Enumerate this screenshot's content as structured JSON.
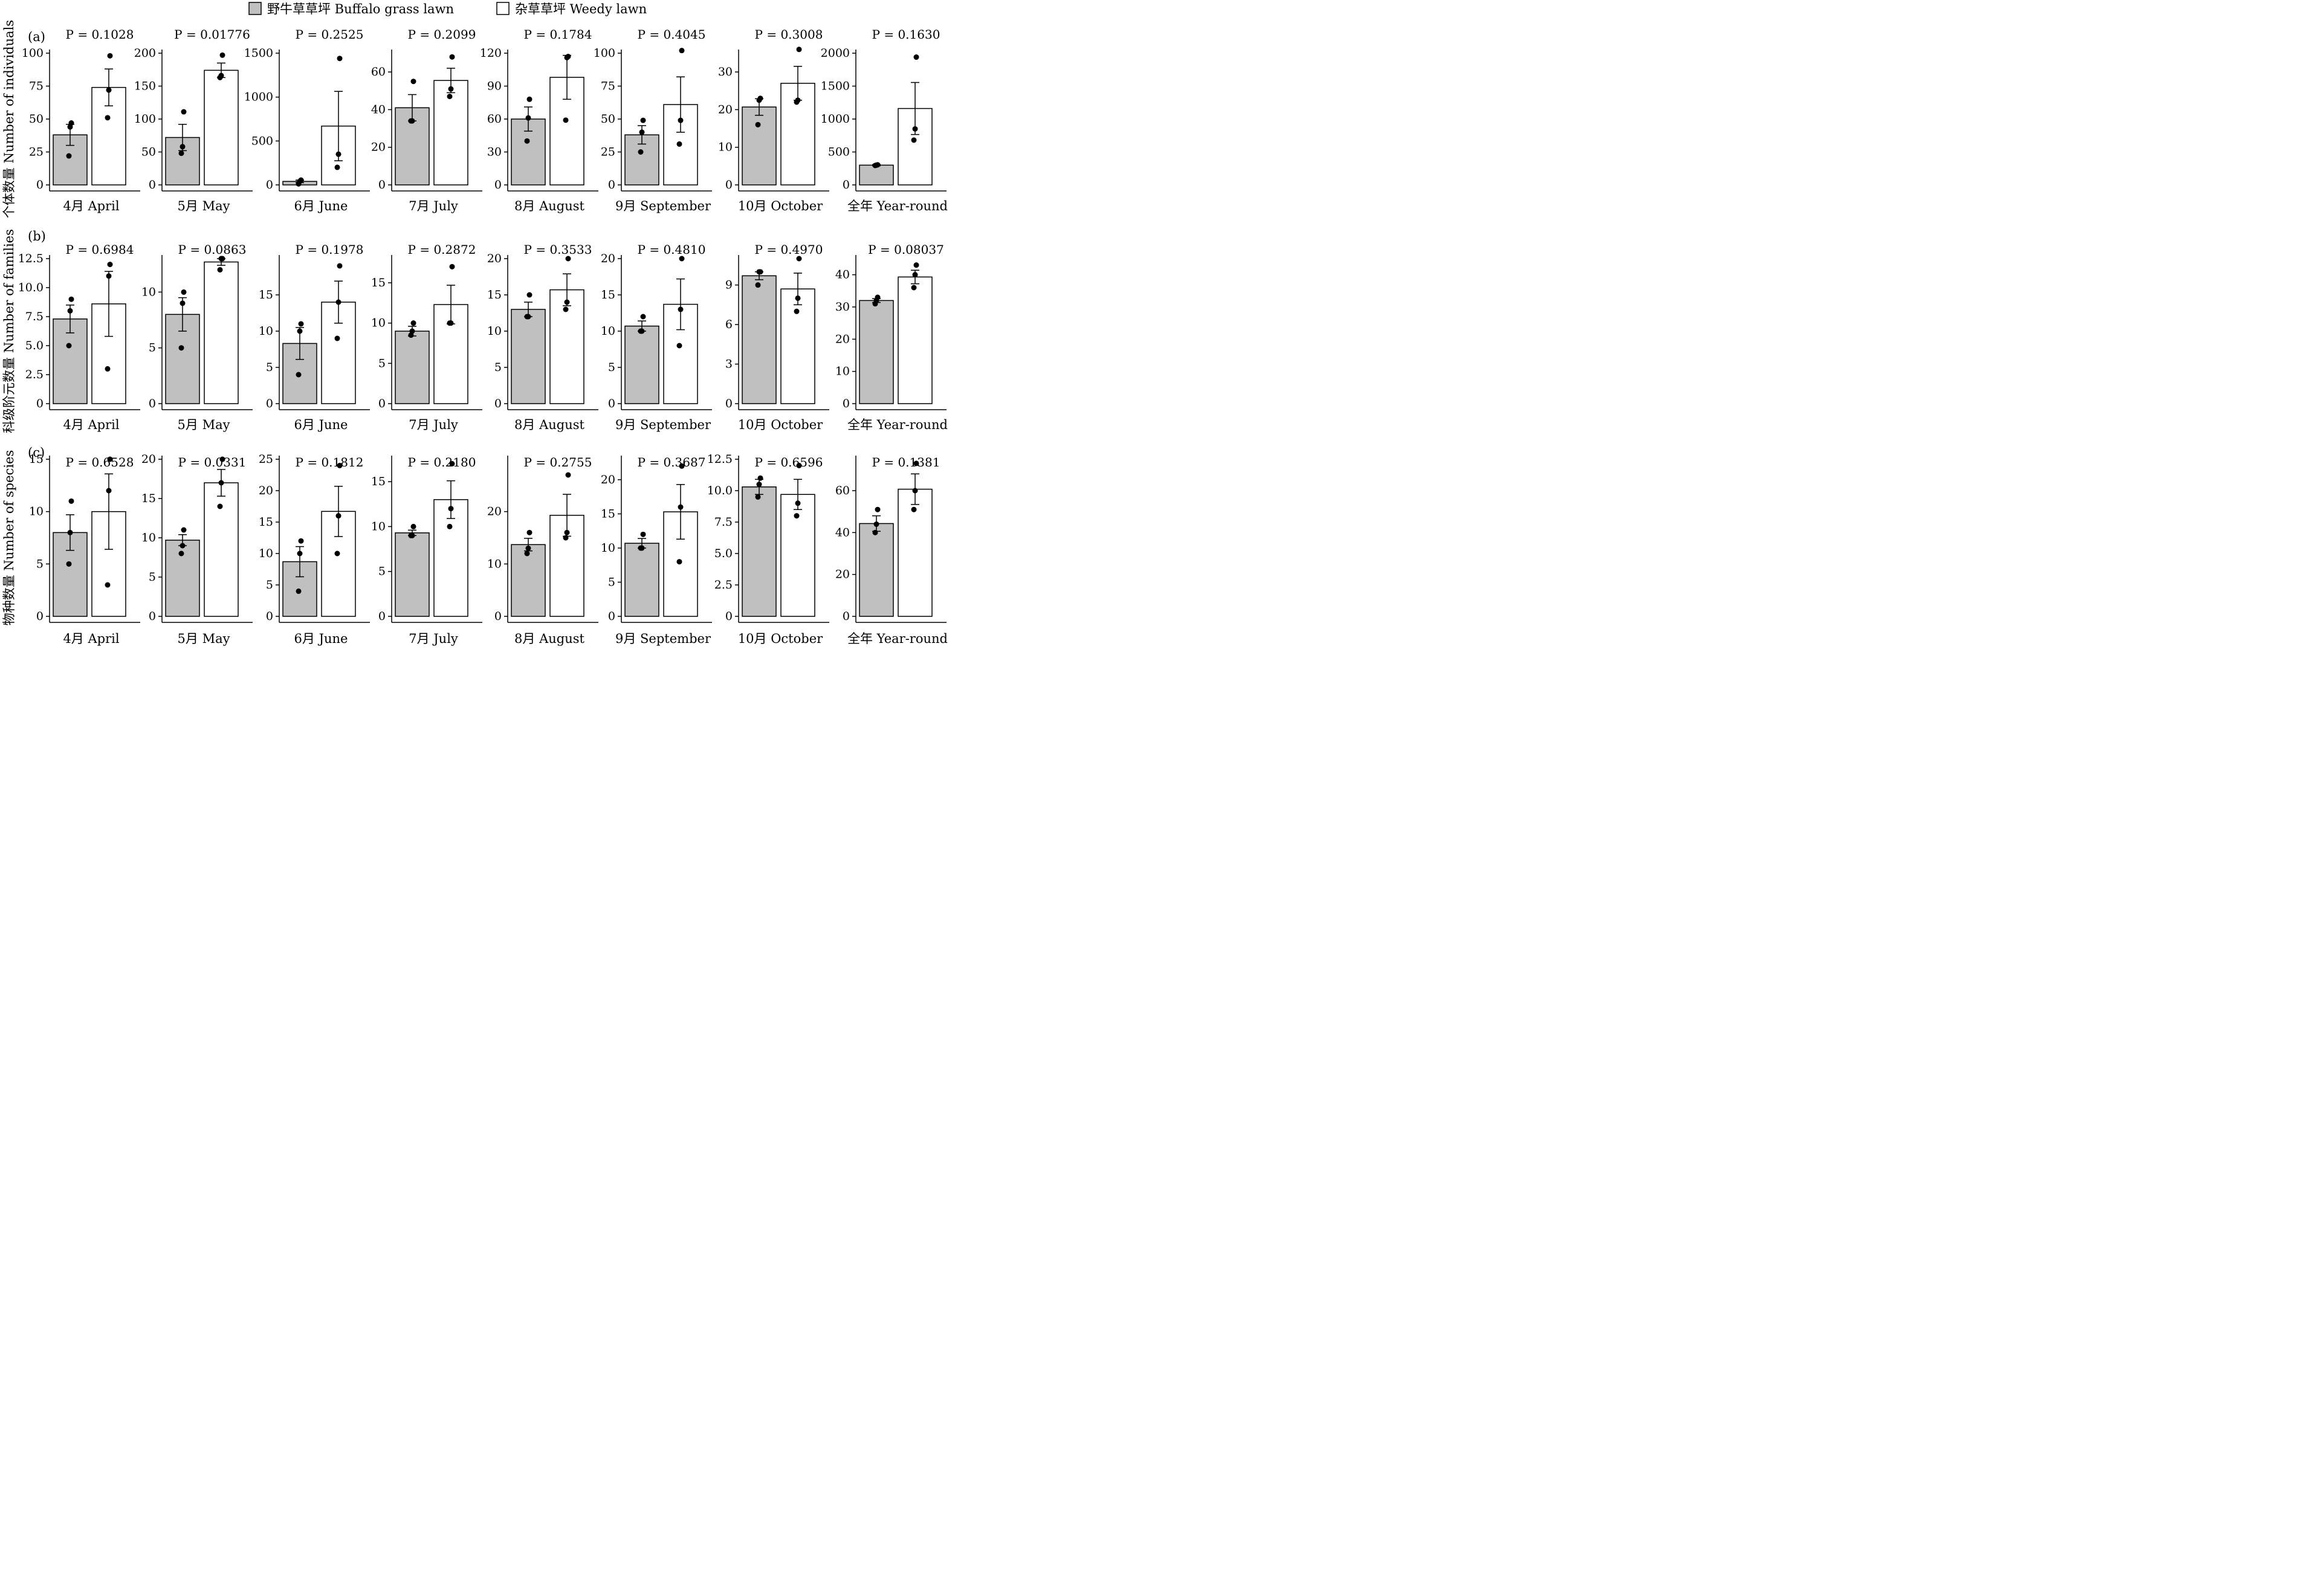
{
  "legend": {
    "items": [
      {
        "label": "野牛草草坪 Buffalo grass lawn",
        "color": "#c0c0c0"
      },
      {
        "label": "杂草草坪 Weedy lawn",
        "color": "#ffffff"
      }
    ]
  },
  "chart_data": [
    {
      "type": "bar",
      "title": "(a)",
      "ylabel": "个体数量 Number of individuals",
      "panels": [
        {
          "xlabel": "4月 April",
          "p": "P = 0.1028",
          "ylim": [
            0,
            100
          ],
          "yticks": [
            0,
            25,
            50,
            75,
            100
          ],
          "series": [
            {
              "values": [
                38
              ],
              "se": [
                8
              ],
              "points": [
                22,
                44,
                47
              ]
            },
            {
              "values": [
                74
              ],
              "se": [
                14
              ],
              "points": [
                51,
                72,
                98
              ]
            }
          ]
        },
        {
          "xlabel": "5月 May",
          "p": "P = 0.01776",
          "ylim": [
            0,
            200
          ],
          "yticks": [
            0,
            50,
            100,
            150,
            200
          ],
          "series": [
            {
              "values": [
                72
              ],
              "se": [
                20
              ],
              "points": [
                48,
                58,
                111
              ]
            },
            {
              "values": [
                174
              ],
              "se": [
                11
              ],
              "points": [
                163,
                166,
                197
              ]
            }
          ]
        },
        {
          "xlabel": "6月 June",
          "p": "P = 0.2525",
          "ylim": [
            0,
            1500
          ],
          "yticks": [
            0,
            500,
            1000,
            1500
          ],
          "series": [
            {
              "values": [
                40
              ],
              "se": [
                15
              ],
              "points": [
                12,
                40,
                55
              ]
            },
            {
              "values": [
                670
              ],
              "se": [
                395
              ],
              "points": [
                200,
                350,
                1440
              ]
            }
          ]
        },
        {
          "xlabel": "7月 July",
          "p": "P = 0.2099",
          "ylim": [
            0,
            70
          ],
          "yticks": [
            0,
            20,
            40,
            60
          ],
          "series": [
            {
              "values": [
                41
              ],
              "se": [
                7
              ],
              "points": [
                34,
                34,
                55
              ]
            },
            {
              "values": [
                55.5
              ],
              "se": [
                6.5
              ],
              "points": [
                47,
                51,
                68
              ]
            }
          ]
        },
        {
          "xlabel": "8月 August",
          "p": "P = 0.1784",
          "ylim": [
            0,
            120
          ],
          "yticks": [
            0,
            30,
            60,
            90,
            120
          ],
          "series": [
            {
              "values": [
                60
              ],
              "se": [
                11
              ],
              "points": [
                40,
                61,
                78
              ]
            },
            {
              "values": [
                98
              ],
              "se": [
                20
              ],
              "points": [
                59,
                116,
                117
              ]
            }
          ]
        },
        {
          "xlabel": "9月 September",
          "p": "P = 0.4045",
          "ylim": [
            0,
            100
          ],
          "yticks": [
            0,
            25,
            50,
            75,
            100
          ],
          "series": [
            {
              "values": [
                38
              ],
              "se": [
                7
              ],
              "points": [
                25,
                40,
                49
              ]
            },
            {
              "values": [
                61
              ],
              "se": [
                21
              ],
              "points": [
                31,
                49,
                102
              ]
            }
          ]
        },
        {
          "xlabel": "10月 October",
          "p": "P = 0.3008",
          "ylim": [
            0,
            35
          ],
          "yticks": [
            0,
            10,
            20,
            30
          ],
          "series": [
            {
              "values": [
                20.7
              ],
              "se": [
                2.2
              ],
              "points": [
                16,
                22.5,
                23
              ]
            },
            {
              "values": [
                27
              ],
              "se": [
                4.5
              ],
              "points": [
                22,
                22.5,
                36
              ]
            }
          ]
        },
        {
          "xlabel": "全年 Year-round",
          "p": "P = 0.1630",
          "ylim": [
            0,
            2000
          ],
          "yticks": [
            0,
            500,
            1000,
            1500,
            2000
          ],
          "series": [
            {
              "values": [
                300
              ],
              "se": [
                10
              ],
              "points": [
                295,
                300,
                305
              ]
            },
            {
              "values": [
                1160
              ],
              "se": [
                395
              ],
              "points": [
                680,
                850,
                1940
              ]
            }
          ]
        }
      ]
    },
    {
      "type": "bar",
      "title": "(b)",
      "ylabel": "科级阶元数量 Number of families",
      "panels": [
        {
          "xlabel": "4月 April",
          "p": "P = 0.6984",
          "ylim": [
            0,
            12.5
          ],
          "yticks": [
            "0",
            "2.5",
            "5.0",
            "7.5",
            "10.0",
            "12.5"
          ],
          "series": [
            {
              "values": [
                7.3
              ],
              "se": [
                1.2
              ],
              "points": [
                5,
                8,
                9
              ]
            },
            {
              "values": [
                8.6
              ],
              "se": [
                2.8
              ],
              "points": [
                3,
                11,
                12
              ]
            }
          ]
        },
        {
          "xlabel": "5月 May",
          "p": "P = 0.0863",
          "ylim": [
            0,
            13
          ],
          "yticks": [
            0,
            5,
            10
          ],
          "series": [
            {
              "values": [
                8
              ],
              "se": [
                1.5
              ],
              "points": [
                5,
                9,
                10
              ]
            },
            {
              "values": [
                12.7
              ],
              "se": [
                0.3
              ],
              "points": [
                12,
                13,
                13
              ]
            }
          ]
        },
        {
          "xlabel": "6月 June",
          "p": "P = 0.1978",
          "ylim": [
            0,
            20
          ],
          "yticks": [
            0,
            5,
            10,
            15
          ],
          "series": [
            {
              "values": [
                8.3
              ],
              "se": [
                2.2
              ],
              "points": [
                4,
                10,
                11
              ]
            },
            {
              "values": [
                14
              ],
              "se": [
                2.9
              ],
              "points": [
                9,
                14,
                19
              ]
            }
          ]
        },
        {
          "xlabel": "7月 July",
          "p": "P = 0.2872",
          "ylim": [
            0,
            18
          ],
          "yticks": [
            0,
            5,
            10,
            15
          ],
          "series": [
            {
              "values": [
                9
              ],
              "se": [
                0.6
              ],
              "points": [
                8.5,
                9,
                10
              ]
            },
            {
              "values": [
                12.3
              ],
              "se": [
                2.4
              ],
              "points": [
                10,
                10,
                17
              ]
            }
          ]
        },
        {
          "xlabel": "8月 August",
          "p": "P = 0.3533",
          "ylim": [
            0,
            20
          ],
          "yticks": [
            0,
            5,
            10,
            15,
            20
          ],
          "series": [
            {
              "values": [
                13
              ],
              "se": [
                1
              ],
              "points": [
                12,
                12,
                15
              ]
            },
            {
              "values": [
                15.7
              ],
              "se": [
                2.2
              ],
              "points": [
                13,
                14,
                20
              ]
            }
          ]
        },
        {
          "xlabel": "9月 September",
          "p": "P = 0.4810",
          "ylim": [
            0,
            20
          ],
          "yticks": [
            0,
            5,
            10,
            15,
            20
          ],
          "series": [
            {
              "values": [
                10.7
              ],
              "se": [
                0.7
              ],
              "points": [
                10,
                10,
                12
              ]
            },
            {
              "values": [
                13.7
              ],
              "se": [
                3.5
              ],
              "points": [
                8,
                13,
                20
              ]
            }
          ]
        },
        {
          "xlabel": "10月 October",
          "p": "P = 0.4970",
          "ylim": [
            0,
            11
          ],
          "yticks": [
            0,
            3,
            6,
            9
          ],
          "series": [
            {
              "values": [
                9.7
              ],
              "se": [
                0.3
              ],
              "points": [
                9,
                10,
                10
              ]
            },
            {
              "values": [
                8.7
              ],
              "se": [
                1.2
              ],
              "points": [
                7,
                8,
                11
              ]
            }
          ]
        },
        {
          "xlabel": "全年 Year-round",
          "p": "P = 0.08037",
          "ylim": [
            0,
            45
          ],
          "yticks": [
            0,
            10,
            20,
            30,
            40
          ],
          "series": [
            {
              "values": [
                32
              ],
              "se": [
                0.6
              ],
              "points": [
                31,
                32,
                33
              ]
            },
            {
              "values": [
                39.3
              ],
              "se": [
                2.1
              ],
              "points": [
                36,
                40,
                43
              ]
            }
          ]
        }
      ]
    },
    {
      "type": "bar",
      "title": "(c)",
      "ylabel": "物种数量 Number of species",
      "panels": [
        {
          "xlabel": "4月 April",
          "p": "P = 0.6528",
          "ylim": [
            0,
            15
          ],
          "yticks": [
            0,
            5,
            10,
            15
          ],
          "series": [
            {
              "values": [
                8
              ],
              "se": [
                1.7
              ],
              "points": [
                5,
                8,
                11
              ]
            },
            {
              "values": [
                10
              ],
              "se": [
                3.6
              ],
              "points": [
                3,
                12,
                15
              ]
            }
          ]
        },
        {
          "xlabel": "5月 May",
          "p": "P = 0.0331",
          "ylim": [
            0,
            20
          ],
          "yticks": [
            0,
            5,
            10,
            15,
            20
          ],
          "series": [
            {
              "values": [
                9.7
              ],
              "se": [
                0.7
              ],
              "points": [
                8,
                9,
                11
              ]
            },
            {
              "values": [
                17
              ],
              "se": [
                1.7
              ],
              "points": [
                14,
                17,
                20
              ]
            }
          ]
        },
        {
          "xlabel": "6月 June",
          "p": "P = 0.1812",
          "ylim": [
            0,
            25
          ],
          "yticks": [
            0,
            5,
            10,
            15,
            20,
            25
          ],
          "series": [
            {
              "values": [
                8.7
              ],
              "se": [
                2.4
              ],
              "points": [
                4,
                10,
                12
              ]
            },
            {
              "values": [
                16.7
              ],
              "se": [
                4
              ],
              "points": [
                10,
                16,
                24
              ]
            }
          ]
        },
        {
          "xlabel": "7月 July",
          "p": "P = 0.2180",
          "ylim": [
            0,
            17.5
          ],
          "yticks": [
            0,
            5,
            10,
            15
          ],
          "series": [
            {
              "values": [
                9.3
              ],
              "se": [
                0.3
              ],
              "points": [
                9,
                9,
                10
              ]
            },
            {
              "values": [
                13
              ],
              "se": [
                2.1
              ],
              "points": [
                10,
                12,
                17
              ]
            }
          ]
        },
        {
          "xlabel": "8月 August",
          "p": "P = 0.2755",
          "ylim": [
            0,
            30
          ],
          "yticks": [
            0,
            10,
            20
          ],
          "series": [
            {
              "values": [
                13.7
              ],
              "se": [
                1.2
              ],
              "points": [
                12,
                13,
                16
              ]
            },
            {
              "values": [
                19.3
              ],
              "se": [
                4
              ],
              "points": [
                15,
                16,
                27
              ]
            }
          ]
        },
        {
          "xlabel": "9月 September",
          "p": "P = 0.3687",
          "ylim": [
            0,
            23
          ],
          "yticks": [
            0,
            5,
            10,
            15,
            20
          ],
          "series": [
            {
              "values": [
                10.7
              ],
              "se": [
                0.7
              ],
              "points": [
                10,
                10,
                12
              ]
            },
            {
              "values": [
                15.3
              ],
              "se": [
                4
              ],
              "points": [
                8,
                16,
                22
              ]
            }
          ]
        },
        {
          "xlabel": "10月 October",
          "p": "P = 0.6596",
          "ylim": [
            0,
            12.5
          ],
          "yticks": [
            "0",
            "2.5",
            "5.0",
            "7.5",
            "10.0",
            "12.5"
          ],
          "series": [
            {
              "values": [
                10.3
              ],
              "se": [
                0.6
              ],
              "points": [
                9.5,
                10.5,
                11
              ]
            },
            {
              "values": [
                9.7
              ],
              "se": [
                1.2
              ],
              "points": [
                8,
                9,
                12
              ]
            }
          ]
        },
        {
          "xlabel": "全年 Year-round",
          "p": "P = 0.1381",
          "ylim": [
            0,
            75
          ],
          "yticks": [
            0,
            20,
            40,
            60
          ],
          "series": [
            {
              "values": [
                44.3
              ],
              "se": [
                3.7
              ],
              "points": [
                40,
                44,
                51
              ]
            },
            {
              "values": [
                60.7
              ],
              "se": [
                7.3
              ],
              "points": [
                51,
                60,
                73
              ]
            }
          ]
        }
      ]
    }
  ]
}
